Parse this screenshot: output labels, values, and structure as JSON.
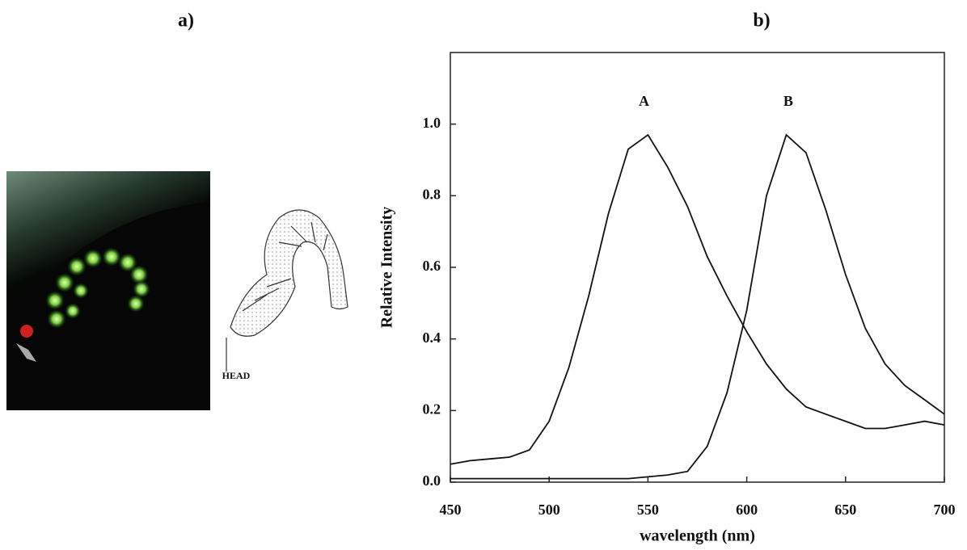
{
  "panels": {
    "a": "a)",
    "b": "b)"
  },
  "drawing": {
    "label": "HEAD"
  },
  "chart_data": {
    "type": "line",
    "x_label": "wavelength (nm)",
    "y_label": "Relative Intensity",
    "x": [
      450,
      460,
      470,
      480,
      490,
      500,
      510,
      520,
      530,
      540,
      550,
      560,
      570,
      580,
      590,
      600,
      610,
      620,
      630,
      640,
      650,
      660,
      670,
      680,
      690,
      700
    ],
    "series": [
      {
        "name": "A",
        "color": "#111111",
        "values": [
          0.05,
          0.06,
          0.065,
          0.07,
          0.09,
          0.17,
          0.32,
          0.52,
          0.75,
          0.93,
          0.97,
          0.88,
          0.77,
          0.63,
          0.52,
          0.42,
          0.33,
          0.26,
          0.21,
          0.19,
          0.17,
          0.15,
          0.15,
          0.16,
          0.17,
          0.16
        ]
      },
      {
        "name": "B",
        "color": "#111111",
        "values": [
          0.01,
          0.01,
          0.01,
          0.01,
          0.01,
          0.01,
          0.01,
          0.01,
          0.01,
          0.01,
          0.015,
          0.02,
          0.03,
          0.1,
          0.25,
          0.48,
          0.8,
          0.97,
          0.92,
          0.76,
          0.58,
          0.43,
          0.33,
          0.27,
          0.23,
          0.19
        ]
      }
    ],
    "annotations": [
      {
        "text": "A",
        "x": 548,
        "y": 1.06
      },
      {
        "text": "B",
        "x": 621,
        "y": 1.06
      }
    ],
    "xlim": [
      450,
      700
    ],
    "xticks": [
      450,
      500,
      550,
      600,
      650,
      700
    ],
    "ylim": [
      0,
      1.2
    ],
    "yticks": [
      {
        "value": 0,
        "label": "0.0"
      },
      0.2,
      0.4,
      0.6,
      0.8,
      {
        "value": 1,
        "label": "1.0"
      }
    ],
    "grid": false
  }
}
